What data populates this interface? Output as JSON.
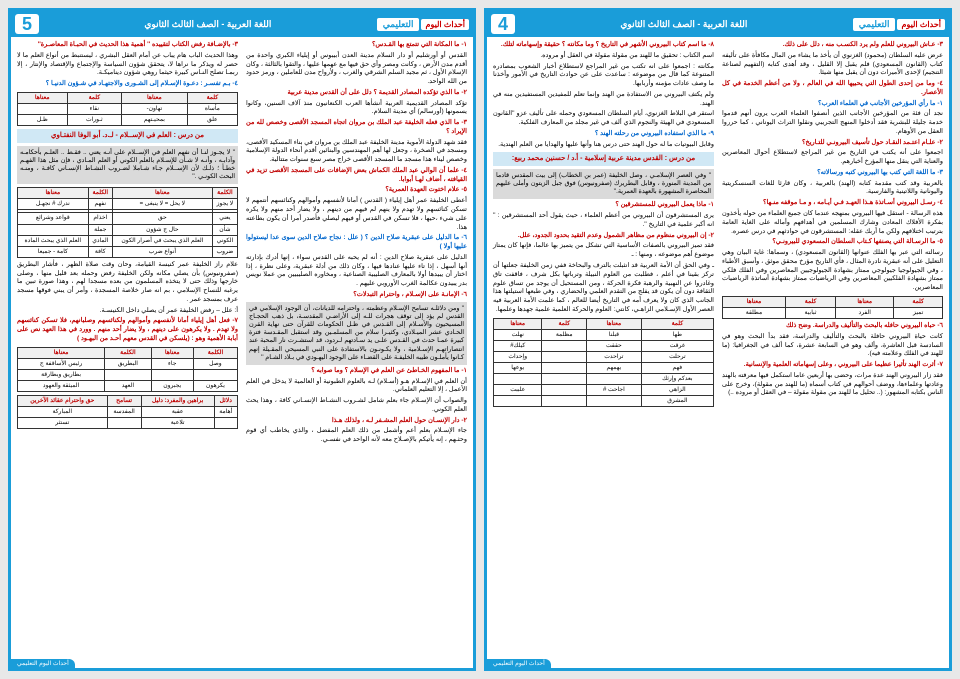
{
  "pages": [
    {
      "num": "4",
      "header": "اللغة العربية - الصف الثالث الثانوي",
      "logo": "أحداث اليوم",
      "edu": "التعليمي",
      "footer": "أحداث اليوم التعليمي",
      "items": [
        {
          "type": "q-red",
          "text": "٣- عـاش البيروني للعلم ولم يرد الكسـب منه ، دلل على ذلك."
        },
        {
          "type": "ans",
          "text": "عرض عليه السلطان (محمود) الغزنوي أن يأخذ ما يشاء من المال مكافأة على تأليفه كتاب (القانون المسعودي) فلم يقبل إلا القليل ، وقد أهدى كتابه (التفهيم لصناعة التنجيم) لإحدى الأميرات دون أن يقبل منها شيئا."
        },
        {
          "type": "q-red",
          "text": "٤- وما من إحدى الطول التي يحبيها الله في العالم ، ولا من أعظم الخدمة في كل الأعصار."
        },
        {
          "type": "q-blue",
          "text": "١- ما رأي المؤرخين الأجانب في العلماء العرب؟"
        },
        {
          "type": "ans",
          "text": "نجد أن فئة من المؤرخين الأجانب الذين أنصفوا العلماء العرب يرون أنهم قدموا خدمة جليلة للبشرية فقد أدخلوا المنهج التجريبي ونقلوا التراث اليوناني ، كما حرروا العقل من الأوهام."
        },
        {
          "type": "q-red",
          "text": "٢- علـام اعتـمد النقـاد حول تأسيف البيرونـي للتـاريخ؟"
        },
        {
          "type": "ans",
          "text": "اجمعوا على أنه يكتب في التاريخ من غير المراجع لاستطلاع أحوال المعاصرين والعناية التي ينقل منها المؤرخ أخبارهم."
        },
        {
          "type": "q-blue",
          "text": "٣- ما اللغة التي كتب بها البيروني كتبه ورسالاته؟"
        },
        {
          "type": "ans",
          "text": "بالعربية وقد كتب مقدمة كتابه (الهند) بالعربية ، وكان قارئا للغات السنسكريتية واليونانية واللاتينية والفارسية."
        },
        {
          "type": "q-red",
          "text": "٤- رسـل البيروني أسـاتذة هـذا العهـد فـي أيـامه ، و مـا موقفه منـها؟"
        },
        {
          "type": "ans",
          "text": "هذه الرسالة - استقل فيها البيروني بمنهجه عندما كان جميع العلماء من حوله يأخذون بفكرة الأفلاك المعادن وشارك المسلمين في أهدافهم وأماله على الغاية العامة بترتيب اختلافهم ولكن ما أربك عقله: المستشرقون في حوادثهم في درس عصره."
        },
        {
          "type": "q-red",
          "text": "٥- ما الرسـالة التي يصنفها كـتاب السلطان المسعودي للبيرونـي؟"
        },
        {
          "type": "ans",
          "text": "رسالته التي عبر بها الفلك عنوانها (القانون المسعودي) ، وسماها: غاية البيان وهي التعليل على أنه عبقرية نادرة المثال ، فأي التاريخ مؤرخ محقق موثق ، وأسبق الأطباء ، وفي الجيولوجيا جيولوجي ممتاز بشهادة الجيولوجيين المعاصرين وفي الفلك فلكي ممتاز بشهادة الفلكيين المعاصرين وفي الرياضيات ممتاز بشهادة أساتذة الرياضيات المعاصرين."
        },
        {
          "type": "table",
          "cls": "hl-red",
          "header": [
            "كلمة",
            "معناها",
            "كلمة",
            "معناها"
          ],
          "rows": [
            [
              "تميز",
              "الفرد",
              "ثبابية",
              "مطلقة"
            ]
          ]
        },
        {
          "type": "q-red",
          "text": "٦- حباه البيروني حافله بالبحث والتأليف والدراسة. وضح ذلك"
        },
        {
          "type": "ans",
          "text": "كانت حياة البيروني حافلة بالبحث والتأليف والدراسة، فقد بدأ البحث وهو في السادسة قبل العاشرة، وألف وهو في السابعة عشرة، كما ألف في الجغرافيا: (ما للهند في الفلك وعلامته فيه)."
        },
        {
          "type": "q-red",
          "text": "٧- أثرت الهند تأثيرا عظيما على البيروني ، وعلى إسهاماته العلمية والإنسانية."
        },
        {
          "type": "ans",
          "text": "فقد زار البيروني الهند عدة مرات، وحضى بها أربعين عاما استكمل فيها معرفته بالهند وعادتها وعلماءها، ووضف أحوالهم في كتاب أسماه (ما للهند من مقولة)، وخرج على الناس بكتابه المشهور: (.. تحليل ما للهند من مقولة مقولة – في العقل أو مروده ..)"
        },
        {
          "type": "q-red",
          "text": "٨- ما اسم كتاب البيروني الأشهر في التاريخ ؟ وما مكانته ؟ حقيقة وإسهاماته لتلك."
        },
        {
          "type": "ans",
          "text": "اسم الكتاب : تحقيق ما للهند من مقولة مقولة في العقل أو مروده."
        },
        {
          "type": "ans",
          "text": "مكانته : اجمعوا على انه تكتب من غير المراجع لاستطلاع أخبار الشعوب بمصادره المتنوعة كما قال من موضوعه : ساعدت على عن حوادث التاريخ في الأمور وأخذنا ما وصف عادات مؤمنه وأربابها."
        },
        {
          "type": "ans",
          "text": "ولم يكتف البيروني من الاستفادة من الهند وإنما تعلم للمفيدين المستفيدين منه في الهند."
        },
        {
          "type": "ans",
          "text": "استقر في البلاط الغزنوي، أيام السلطان المسعودي وحمله على تأليف عزو ''القانون المسعودي في الهيئة والنجوم الذي ألف في غير مجلد من المعارف الفلكية."
        },
        {
          "type": "q-blue",
          "text": "٩- ما الذي استفاده البيروني من رحلته الهند ؟"
        },
        {
          "type": "ans",
          "text": "وقابل البيوتيات ما له حول الهند حتى درس هنا وأنها عليها والهدايا من العلم الهندية."
        },
        {
          "type": "section",
          "text": "من درس : القدس مدينة عربية إسلامية - أ.د / حسنين محمد ربيع:"
        },
        {
          "type": "excerpt",
          "text": "'' وفي العصر الإسلامـي ، وصل الخليفة (عمر بن الخطاب) إلى بيت المقدس قادما من المدينة المنورة ، وقابل البطريرك (صفرونيوس) فوق جبل الزيتون وأملى عليهم المحاصرة المشهورة بالعهدة العمرية.''"
        },
        {
          "type": "q-red",
          "text": "١- ماذا يعمل البيروني للمستشرقين ؟"
        },
        {
          "type": "ans",
          "text": "يرى المستشرقون أن البيروني من أعظم العلماء ، حيث يقول أحد المستشرقين : '' انه أكبر علمية في التاريخ ''."
        },
        {
          "type": "q-red",
          "text": "٢- إن البيروني منظوم من مظاهر الشمول وعدم التقيد بحدود الجدود، علل."
        },
        {
          "type": "ans",
          "text": "فقد تميز البيروني بالصفات الأساسية التي تشكل من يتميز بها عالما، فإنها كان يمتاز موضوع أهم موضوعه ، ومنها : ـ"
        },
        {
          "type": "ans",
          "text": "ـ وفي الحق أن الأمة العربية قد انثبلت بالترف والبحاخة ففي زمن الخليفة جعلتها أن تركز بقينا في أعلم ، فطلبت من العلوم النبيلة وترباتها بكل شرف ، فاقفت تاق وغادروا عن النهبية والرهبة فكرة الحركة ، ومن المستحيل أن يوجد من تساق علوم الثقافة دون أن يكون قد يفلج من التقدم العلمي والحضاري ، وفي طبعها استيلتها هذا الجانب الذي كان ولا يعرف أمه في التاريخ أيضا للعالم ، كما علمت الأمة العربية فيه العصر الأول الإسـلامي الزاهـي، كانتي: العلوم والحركة العلمية علمية جهدها وعلمها."
        },
        {
          "type": "table",
          "cls": "hl-red",
          "header": [
            "كلمة",
            "معناها",
            "كلمة",
            "معناها"
          ],
          "rows": [
            [
              "طها",
              "قبلنا",
              "مظلمة",
              "نهلت"
            ],
            [
              "غرقت",
              "حققت",
              "",
              "كيلك#"
            ],
            [
              "ترحلت",
              "تراحدت",
              "",
              "وإحداث"
            ],
            [
              "فهم",
              "يهمهم",
              "",
              "يوعها"
            ],
            [
              "بعدكم وإرثك",
              "",
              "",
              ""
            ],
            [
              "الزاهي",
              "اجاحت #",
              "",
              "علببت"
            ],
            [
              "المشرق",
              "",
              "",
              ""
            ]
          ]
        }
      ]
    },
    {
      "num": "5",
      "header": "اللغة العربية - الصف الثالث الثانوي",
      "logo": "أحداث اليوم",
      "edu": "التعليمي",
      "items": [
        {
          "type": "q-red",
          "text": "١- ما المكانة التي تتمتع بها القـدس؟"
        },
        {
          "type": "ans",
          "text": "القدس أو أورشليم أو دار السلام مدينة العدن أبيبوس أو إيلياء الكبري واحدة من أقدم مدن الأرض ، وكانت ومصر وأي حق فيها مع عهمها عليها ، والتقوا بالثالثة ، وكان الإسلام الأول ، ثم مجيد السلم الشرقي والغرب ، ولأرواح مدن للعاملين ، ورمز حدود من الله الواحد."
        },
        {
          "type": "q-red",
          "text": "٢- ما الذي تؤكده المصادر القديمة ؟ دلل على أن القدس مدينة عربية"
        },
        {
          "type": "ans",
          "text": "تؤكد المصادر القديمية العربية أنشأها العرب الكنعانيون منذ آلاف السنين، وكانوا يسمونها (أورسالم) أي مدينة السلام."
        },
        {
          "type": "q-red",
          "text": "٣- ما الذي فعله الخليفة عبد الملك بن مروان اتجاه المسجد الأقصى وخصص لله من الإيراد ؟"
        },
        {
          "type": "ans",
          "text": "فقد شهد الدولة الأموية مدينة الخليفة عبد الملك بن مروان في بناء المسكيد الأقصى، ومسجد في الصخرة ، وجعل لها أهم المهندسين والبنائين أقدم أنحاء الدولة الإسلامية وخصص ليناء هذا مسجد ما المسجد الأقصى خراج مصر سبع سنوات متتالية."
        },
        {
          "type": "q-red",
          "text": "٤- علما أن الوالي عبد الملك الكماش بعض الإضافات على المسجد الأقصى تزيد في القيافته ، أضاف لهـا أبوابا."
        },
        {
          "type": "q-red",
          "text": "٥- علام اختوت العهدة العمرية؟"
        },
        {
          "type": "ans",
          "text": "أعطى الخليفة عمر أهل إيلياء ( القدس ) أمانا لأنفسهم وأموالهم وكنائسهم أنتمهم لا تسكن كنائسهم ولا تهدم ولا ينهم لم فيهم من دينهم ، ولا يضار أحد منهم ولا يكره على شيء ،حيها ، فلا تسكن في القدس أو فيهم ليصلي فأصدر أمرا أن يكون بطاعته هذا."
        },
        {
          "type": "q-blue",
          "text": "٦- ما الدليل على عبقرية صلاح الدين ؟ ( علل : نجاح صلاح الدين سوى عدا ليستولوا عليها أولا )"
        },
        {
          "type": "ans",
          "text": "الدليل على عبقرية صلاح الدين : أنه لم يحبه على القدس سواء ، إنها أدرك بإدارته أنها أسهل ، إذا تاء عليها عنادها فيها ، وكان ذلك من أدلة عبقرية، وعلى نظرة ، إذا اختار أن يبيدها أولا بالمعارف الصليبية الصناعية ، ومخاوره الصليبيين من عملا نويس بدر يبيدون عكالمة الغرب الأوروبي عليهم ."
        },
        {
          "type": "q-red",
          "text": "٦- الإمانـة على الإسـلام ، واحترام التبدلات؟"
        },
        {
          "type": "excerpt",
          "text": "'' ومن دلائلـه تسامح الإسـلام وعظمته ، واحترامه للديانات، أن الوجود الإسلامي في القدس لم يؤد إلى توقف هجرات للـه إلى الأراضـي المقدسـة، بل ذهب الحجـاج المسيحيون والأسـلام إلى القـدس في ظـل الحكومات للقرآن حتى نهاية القرن الحـادي عشر الميـلادي، وكثيـرا سلام من المسلمـين وقد استقبل المقـدسة فترة كبيرة عمـا حدث في القـدس علـى يد سـادتهم لـردود، قد استشـرت نار المحبة عند انتصاراتهـم الإسـلامية ، ولا يكـونـون بالاستفادة على النبي المسيحي المقـيلة إنهم كـانوا يأملـون طيبه الخليفـة على القضـاء على الوجود اليهـودي في بـلاد الشـام ''"
        },
        {
          "type": "q-red",
          "text": "١- ما المفهوم الخـاطئ عن العلم في الإسلام ؟ وما صوابه ؟"
        },
        {
          "type": "ans",
          "text": "أن العلم في الإسـلام هـو (أسـلام) لـه بالعلوم الطبونية أو العالمية لا يدخل في العلم الأعمل ، إلا التعليم العلماني."
        },
        {
          "type": "ans",
          "text": "والصواب أن الإسـلام جاء بعلم شامل لشـروب النشـاط الإنسـاني كافة ، وهذا يحث العلم الكوني."
        },
        {
          "type": "q-red",
          "text": "٢- دار الإنسـان حول العلم المشـفر لـه ، ولذلك هـذا"
        },
        {
          "type": "ans",
          "text": "جاء الإسـلام بعلم أعم وأشمل من ذلك العلم المفضل ، والذي يخاطب أي قوم وحثـهم ، إنه يأتيكم بالإصـلاح معه لأنه الواحد في نفسـي."
        },
        {
          "type": "q-red",
          "text": "٣- بالإضـافة رفض الكتاب لتقييده '' أهمية هذا الحديث في الحبـاة المعاصـرة''"
        },
        {
          "type": "ans",
          "text": "وهذا الحديث الباب هام يباب عن أمام العقل البشري ، ليستنبط من أنواع العلم ما لا حصر له ويذكر ما نراها لا، يتحقق شؤون السياسة والإجتماع والإقتصاد والإنتار ، إلا ربمـا تصلح النـاس كبيرة حيثما روهي شؤون ديناميكـة."
        },
        {
          "type": "q-blue",
          "text": "٤- بـم تفسـر : دعـوة الإسـلام إلى الشـورى والاجتهـاد في شـؤون الدنيـا ؟"
        },
        {
          "type": "table",
          "cls": "hl-red",
          "header": [
            "كلمة",
            "معناها",
            "كلمة",
            "معناها"
          ],
          "rows": [
            [
              "مأساة",
              "تهاون-",
              "نقاء",
              ""
            ],
            [
              "علق",
              "بمحيـتهم",
              "ثـورات",
              "ظـل"
            ]
          ]
        },
        {
          "type": "section",
          "text": "من درس : العلم في الإســلام - لـ.د. أبو الوفا النفتـاوي"
        },
        {
          "type": "excerpt",
          "text": "''  لا يجـوز لنـا أن نفهم العلم في الإســلام على أنـه يعني .. فقـط .. العلـم بأحكامـه وآدابـه ، وأنـه لا شـأن للإسـلام بالعلم الكوني أو العلم المـادي ، فإن مثل هذا الفهـم خطـأ ؛ ذلـك لأن الإســلام جـاء شـاملا لضـروب النشـاط الإنسـاني كافـة ، ومنـه البحث الكونـي .''"
        },
        {
          "type": "table",
          "cls": "hl-red",
          "header": [
            "الكلمة",
            "معناها",
            "الكلمة",
            "معناها"
          ],
          "rows": [
            [
              "لا يجوز",
              "لا يحل = لا ينبغى =",
              "نفهم",
              "ندرك # نجهـل"
            ],
            [
              "",
              "",
              "",
              ""
            ],
            [
              "يعني",
              "حق",
              "اخذام",
              "قواعد وشرائع"
            ],
            [
              "شأن",
              "حال ج شؤون",
              "جملة",
              ""
            ],
            [
              "الكوني",
              "العلم الذي يبحث في أصرار الكون",
              "المادي",
              "العلم الذي يبحث المادة"
            ],
            [
              "ضروب",
              "أنواع ضرب",
              "كافة",
              "كامة - جميعا"
            ]
          ]
        },
        {
          "type": "ans",
          "text": "علام راز الخليفة عمر كنيسة القيامة، وحان وقت صلاة الظهر ، فأشار البطريق (صفرونيوس) بأن يصلي مكانه ولكن الخليفة رفض وحمله بعد قليل منها ، وصلى خارجها وذلك حتى لا يتخذه المسلمون من بعده مسجدا لهم ، وهذا صورة تبين ما يرغبه للنساح الإسلامي ، بم انه صار خلاصة المسجدة ، وأمر أن يبني فوقها مسجد عرف بمسجد عمر ."
        },
        {
          "type": "ans",
          "text": "أ: علل – رفض الخليفة عمر أن يصلي داخل الكنيسـة."
        },
        {
          "type": "q-red",
          "text": "٧- فعل أهل إيلياء أمانا لأنفسهم وأموالهم ولكنائسهم وصلبانهم، فلا تسكن كنائسهم ولا تهدم . ولا يكرهون على دينهم ، ولا يضار أحد منهم . وورد في هذا العهد نص على أبابة الأهمية وهو : (يلسكن في القدس معهم أحـد من البهـود )"
        },
        {
          "type": "table",
          "cls": "hl-red",
          "header": [
            "الكلمة",
            "معناها",
            "الكلمة",
            "معناها"
          ],
          "rows": [
            [
              "وصل",
              "جاء",
              "البطريق",
              "رئيس الأساقفة ج"
            ],
            [
              "",
              "",
              "",
              "بطاريق وبطارقة"
            ],
            [
              "يكرهون",
              "يجبرون",
              "العهد",
              "الميثقة والعهود"
            ]
          ]
        },
        {
          "type": "table",
          "cls": "hl-red",
          "header": [
            "دلائل",
            "براهين والمفرد: دليل",
            "تسامح",
            "حق واحترام عقائد الآخرين"
          ],
          "rows": [
            [
              "أهامة",
              "عقبة",
              "المفدسة",
              "المباركة"
            ],
            [
              "",
              "تلاعبة",
              "",
              "تستثر"
            ]
          ]
        }
      ]
    }
  ]
}
